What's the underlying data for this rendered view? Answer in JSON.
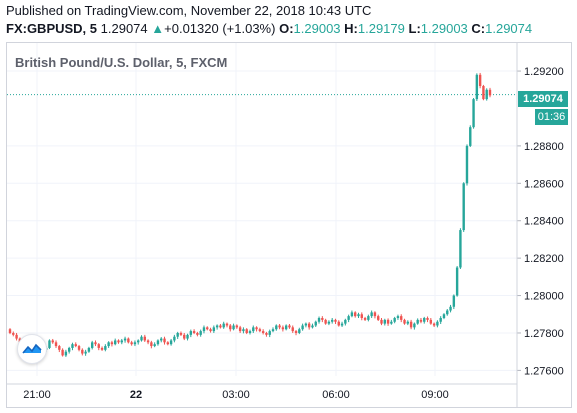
{
  "header": {
    "published": "Published on TradingView.com, November 22, 2018 10:43 UTC",
    "symbol": "FX:GBPUSD, 5",
    "price": "1.29074",
    "change_arrow": "▲",
    "change": "+0.01320 (+1.03%)",
    "o_label": "O:",
    "o_value": "1.29003",
    "h_label": "H:",
    "h_value": "1.29179",
    "l_label": "L:",
    "l_value": "1.29003",
    "c_label": "C:",
    "c_value": "1.29074"
  },
  "legend": {
    "title": "British Pound/U.S. Dollar, 5, FXCM"
  },
  "price_tag": {
    "value": "1.29074",
    "countdown": "01:36"
  },
  "colors": {
    "up": "#26a69a",
    "down": "#ef5350",
    "grid": "#f0f3fa",
    "text": "#131722"
  },
  "icons": {
    "logo": "tradingview-logo-icon"
  },
  "chart_data": {
    "type": "candlestick",
    "title": "British Pound/U.S. Dollar, 5, FXCM",
    "x_tick_labels": [
      "21:00",
      "22",
      "03:00",
      "06:00",
      "09:00"
    ],
    "y_tick_labels": [
      "1.29200",
      "1.28800",
      "1.28600",
      "1.28400",
      "1.28200",
      "1.28000",
      "1.27800",
      "1.27600"
    ],
    "ylim": [
      1.2757,
      1.2935
    ],
    "last_price": 1.29074,
    "grid": true,
    "close_series": [
      1.278,
      1.2779,
      1.2777,
      1.2775,
      1.2773,
      1.2771,
      1.277,
      1.2772,
      1.2774,
      1.2773,
      1.2771,
      1.2772,
      1.2776,
      1.2775,
      1.2773,
      1.2771,
      1.2768,
      1.277,
      1.2772,
      1.2774,
      1.2773,
      1.2771,
      1.2769,
      1.277,
      1.2772,
      1.2775,
      1.2774,
      1.2772,
      1.2771,
      1.2773,
      1.2775,
      1.2774,
      1.2776,
      1.2775,
      1.2776,
      1.2777,
      1.2775,
      1.2774,
      1.2775,
      1.2776,
      1.2778,
      1.2776,
      1.2775,
      1.2773,
      1.2774,
      1.2776,
      1.2777,
      1.2775,
      1.2774,
      1.2776,
      1.2778,
      1.278,
      1.2779,
      1.2777,
      1.2779,
      1.2781,
      1.278,
      1.2779,
      1.2781,
      1.2783,
      1.2782,
      1.2781,
      1.2783,
      1.2784,
      1.2783,
      1.2785,
      1.2784,
      1.2782,
      1.2784,
      1.2783,
      1.2781,
      1.2782,
      1.278,
      1.2781,
      1.2783,
      1.2782,
      1.2781,
      1.278,
      1.2779,
      1.2781,
      1.2782,
      1.2784,
      1.2783,
      1.2782,
      1.2784,
      1.2783,
      1.2781,
      1.278,
      1.2782,
      1.2784,
      1.2785,
      1.2783,
      1.2784,
      1.2786,
      1.2788,
      1.2787,
      1.2785,
      1.2786,
      1.2787,
      1.2786,
      1.2784,
      1.2785,
      1.2787,
      1.2789,
      1.2791,
      1.2789,
      1.279,
      1.2788,
      1.2787,
      1.2789,
      1.2791,
      1.2789,
      1.2787,
      1.2785,
      1.2787,
      1.2785,
      1.2786,
      1.2788,
      1.2789,
      1.2787,
      1.2785,
      1.2786,
      1.2783,
      1.2785,
      1.2787,
      1.2786,
      1.2788,
      1.2787,
      1.2785,
      1.2784,
      1.2786,
      1.2788,
      1.279,
      1.2792,
      1.2794,
      1.28,
      1.2815,
      1.2835,
      1.286,
      1.288,
      1.289,
      1.2905,
      1.2918,
      1.2912,
      1.2905,
      1.291,
      1.2907
    ]
  }
}
